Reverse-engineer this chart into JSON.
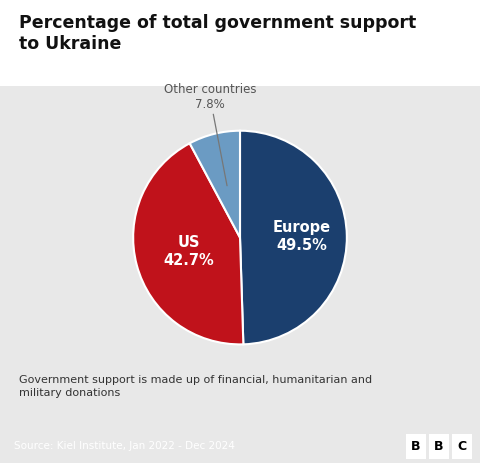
{
  "title": "Percentage of total government support\nto Ukraine",
  "slices": [
    49.5,
    42.7,
    7.8
  ],
  "labels": [
    "Europe",
    "US",
    "Other countries"
  ],
  "colors": [
    "#1b3f6e",
    "#c0121b",
    "#6b9bc3"
  ],
  "footnote": "Government support is made up of financial, humanitarian and\nmilitary donations",
  "source": "Source: Kiel Institute, Jan 2022 - Dec 2024",
  "background_color": "#e8e8e8",
  "title_bg_color": "#ffffff",
  "bottom_bar_color": "#3a3a3a",
  "title_color": "#111111",
  "footnote_color": "#333333",
  "europe_label": "Europe\n49.5%",
  "us_label": "US\n42.7%",
  "other_label": "Other countries\n7.8%"
}
